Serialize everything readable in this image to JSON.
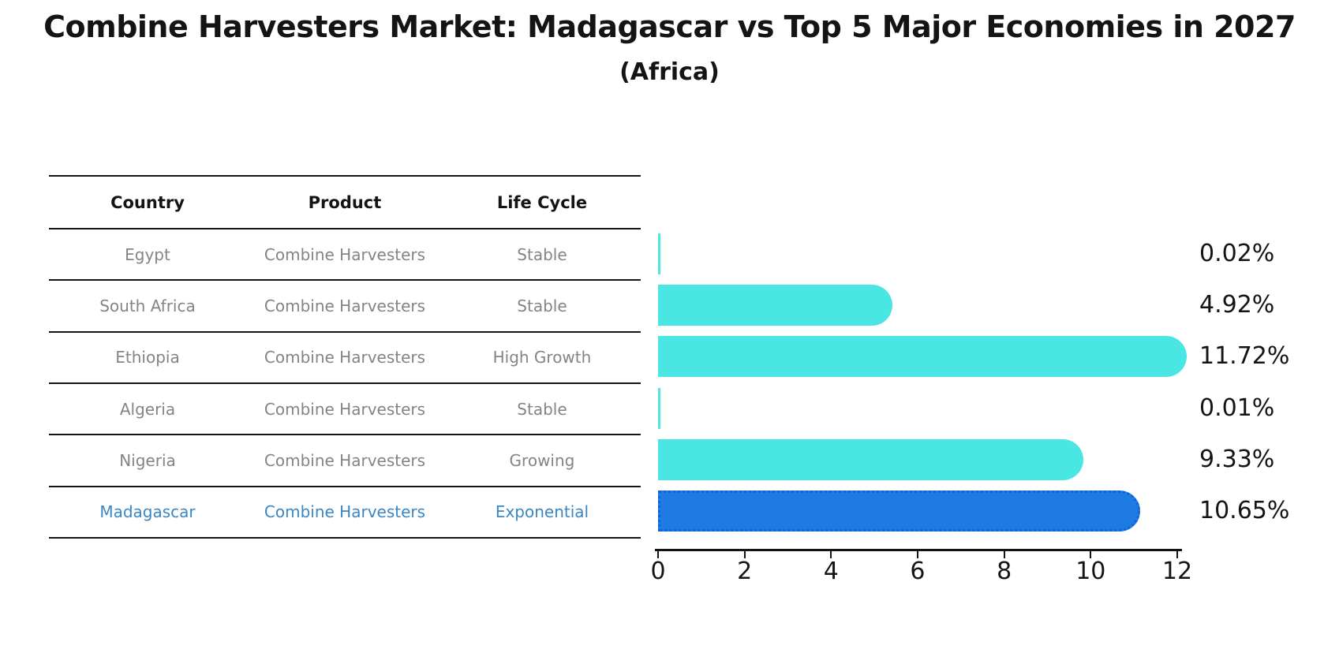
{
  "title": "Combine Harvesters Market: Madagascar vs Top 5 Major Economies in 2027",
  "subtitle": "(Africa)",
  "table": {
    "headers": [
      "Country",
      "Product",
      "Life Cycle"
    ],
    "rows": [
      {
        "country": "Egypt",
        "product": "Combine Harvesters",
        "life_cycle": "Stable",
        "highlight": false
      },
      {
        "country": "South Africa",
        "product": "Combine Harvesters",
        "life_cycle": "Stable",
        "highlight": false
      },
      {
        "country": "Ethiopia",
        "product": "Combine Harvesters",
        "life_cycle": "High Growth",
        "highlight": false
      },
      {
        "country": "Algeria",
        "product": "Combine Harvesters",
        "life_cycle": "Stable",
        "highlight": false
      },
      {
        "country": "Nigeria",
        "product": "Combine Harvesters",
        "life_cycle": "Growing",
        "highlight": false
      },
      {
        "country": "Madagascar",
        "product": "Combine Harvesters",
        "life_cycle": "Exponential",
        "highlight": true
      }
    ]
  },
  "chart_data": {
    "type": "bar",
    "orientation": "horizontal",
    "title": "Combine Harvesters Market: Madagascar vs Top 5 Major Economies in 2027",
    "subtitle": "(Africa)",
    "categories": [
      "Egypt",
      "South Africa",
      "Ethiopia",
      "Algeria",
      "Nigeria",
      "Madagascar"
    ],
    "values": [
      0.02,
      4.92,
      11.72,
      0.01,
      9.33,
      10.65
    ],
    "value_labels": [
      "0.02%",
      "4.92%",
      "11.72%",
      "0.01%",
      "9.33%",
      "10.65%"
    ],
    "x_ticks": [
      0,
      2,
      4,
      6,
      8,
      10,
      12
    ],
    "xlim": [
      0,
      12.2
    ],
    "xlabel": "",
    "ylabel": "",
    "grid": false,
    "legend": false,
    "bar_color": "#4AE6E3",
    "highlight_index": 5,
    "highlight_color": "#1E7BE1",
    "highlight_border_color": "#0E63D8",
    "highlight_text_color": "#3B87C4",
    "bar_style_note": "rounded right caps; highlighted Madagascar bar has dotted edge"
  }
}
